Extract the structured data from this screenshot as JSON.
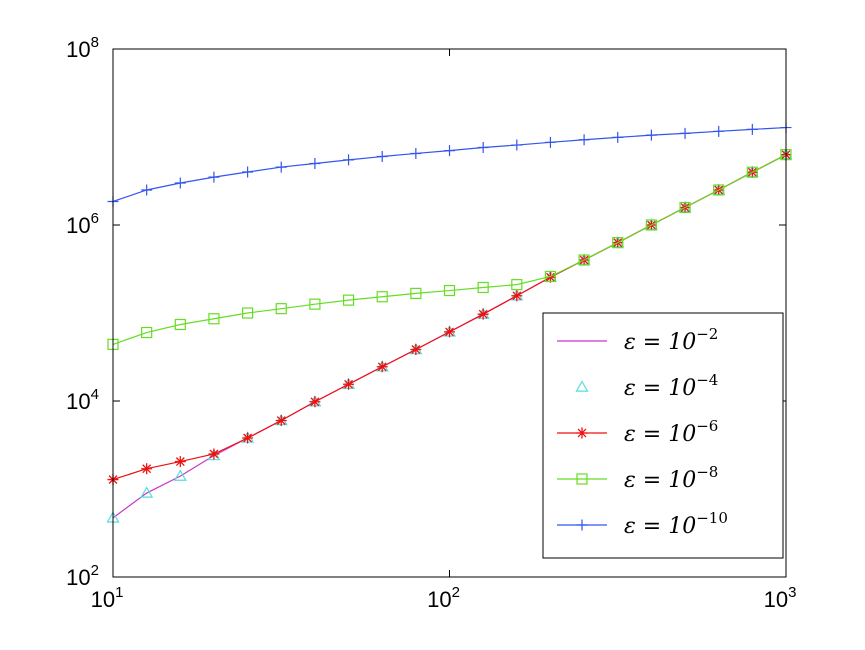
{
  "chart_data": {
    "type": "line",
    "title": "",
    "xlabel": "",
    "ylabel": "",
    "xscale": "log",
    "yscale": "log",
    "xlim": [
      10,
      1000
    ],
    "ylim": [
      100,
      100000000
    ],
    "grid": false,
    "legend_position": "bottom-right",
    "x_ticks": [
      {
        "base": "10",
        "exp": "1",
        "value": 10
      },
      {
        "base": "10",
        "exp": "2",
        "value": 100
      },
      {
        "base": "10",
        "exp": "3",
        "value": 1000
      }
    ],
    "y_ticks": [
      {
        "base": "10",
        "exp": "2",
        "value": 100
      },
      {
        "base": "10",
        "exp": "4",
        "value": 10000
      },
      {
        "base": "10",
        "exp": "6",
        "value": 1000000
      },
      {
        "base": "10",
        "exp": "8",
        "value": 100000000
      }
    ],
    "x": [
      10,
      12.59,
      15.85,
      19.95,
      25.12,
      31.62,
      39.81,
      50.12,
      63.1,
      79.43,
      100,
      125.9,
      158.5,
      199.5,
      251.2,
      316.2,
      398.1,
      501.2,
      631,
      794.3,
      1000
    ],
    "series": [
      {
        "legend_base": "ε = 10",
        "legend_exp": "−2",
        "color": "#cc33cc",
        "marker": "none",
        "values": [
          470,
          900,
          1400,
          2400,
          3800,
          6000,
          9800,
          15500,
          24500,
          38500,
          61000,
          97000,
          157000,
          255000,
          400000,
          630000,
          1000000,
          1580000,
          2500000,
          3980000,
          6300000
        ]
      },
      {
        "legend_base": "ε = 10",
        "legend_exp": "−4",
        "color": "#55dddd",
        "marker": "triangle",
        "values": [
          470,
          900,
          1400,
          2400,
          3800,
          6000,
          9800,
          15500,
          24500,
          38500,
          61000,
          97000,
          157000,
          255000,
          400000,
          630000,
          1000000,
          1580000,
          2500000,
          3980000,
          6300000
        ]
      },
      {
        "legend_base": "ε = 10",
        "legend_exp": "−6",
        "color": "#ee1111",
        "marker": "asterisk",
        "values": [
          1280,
          1700,
          2050,
          2500,
          3800,
          6000,
          9800,
          15500,
          24500,
          38500,
          61000,
          97000,
          157000,
          255000,
          400000,
          630000,
          1000000,
          1580000,
          2500000,
          3980000,
          6300000
        ]
      },
      {
        "legend_base": "ε = 10",
        "legend_exp": "−8",
        "color": "#66dd22",
        "marker": "square",
        "values": [
          44000,
          60000,
          74000,
          86000,
          100000,
          112000,
          126000,
          140000,
          153000,
          167000,
          180000,
          195000,
          210000,
          260000,
          400000,
          630000,
          1000000,
          1580000,
          2500000,
          3980000,
          6300000
        ]
      },
      {
        "legend_base": "ε = 10",
        "legend_exp": "−10",
        "color": "#3355ee",
        "marker": "plus",
        "values": [
          1850000,
          2500000,
          3000000,
          3500000,
          4000000,
          4550000,
          5000000,
          5500000,
          6000000,
          6500000,
          7000000,
          7600000,
          8100000,
          8700000,
          9300000,
          9900000,
          10500000,
          11000000,
          11600000,
          12200000,
          12800000
        ]
      }
    ]
  }
}
